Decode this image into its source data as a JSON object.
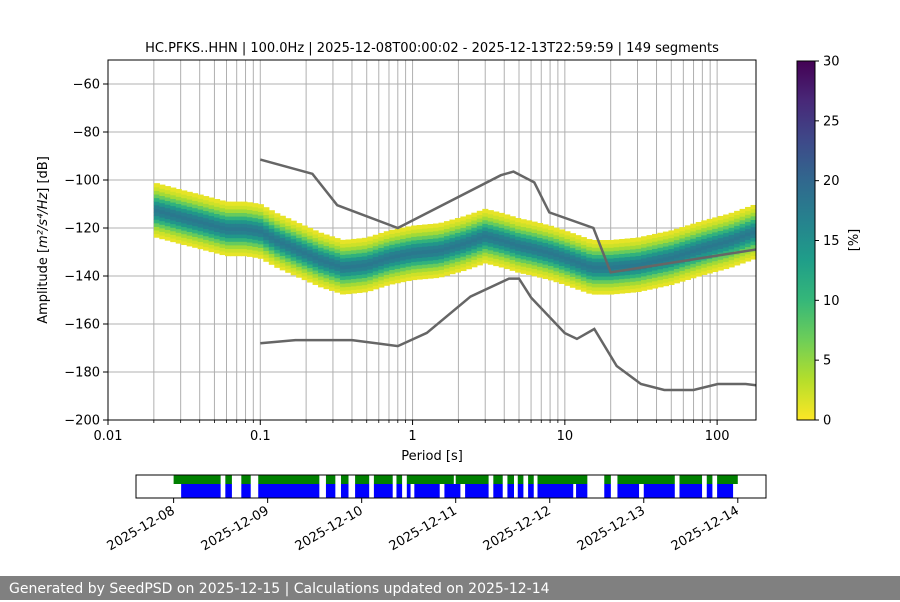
{
  "chart_data": [
    {
      "type": "heatmap",
      "title": "HC.PFKS..HHN | 100.0Hz | 2025-12-08T00:00:02 - 2025-12-13T22:59:59 | 149 segments",
      "xlabel": "Period [s]",
      "ylabel_prefix": "Amplitude [",
      "ylabel_math": "m²/s⁴/Hz",
      "ylabel_suffix": "] [dB]",
      "xscale": "log",
      "xlim": [
        0.01,
        180
      ],
      "ylim": [
        -200,
        -50
      ],
      "xticks": [
        {
          "value": 0.01,
          "label": "0.01"
        },
        {
          "value": 0.1,
          "label": "0.1"
        },
        {
          "value": 1,
          "label": "1"
        },
        {
          "value": 10,
          "label": "10"
        },
        {
          "value": 100,
          "label": "100"
        }
      ],
      "yticks": [
        -60,
        -80,
        -100,
        -120,
        -140,
        -160,
        -180,
        -200
      ],
      "grid": true,
      "colorbar": {
        "label": "[%]",
        "range": [
          0,
          30
        ],
        "ticks": [
          0,
          5,
          10,
          15,
          20,
          25,
          30
        ],
        "colormap": "viridis-reversed",
        "colors": [
          "#fde725",
          "#b5de2b",
          "#6ece58",
          "#35b779",
          "#1f9e89",
          "#26828e",
          "#31688e",
          "#3e4989",
          "#482878",
          "#440154"
        ]
      },
      "psd_mode": [
        {
          "period": 0.02,
          "db": -113
        },
        {
          "period": 0.03,
          "db": -116
        },
        {
          "period": 0.04,
          "db": -118
        },
        {
          "period": 0.06,
          "db": -121
        },
        {
          "period": 0.08,
          "db": -121
        },
        {
          "period": 0.1,
          "db": -122
        },
        {
          "period": 0.13,
          "db": -126
        },
        {
          "period": 0.18,
          "db": -130
        },
        {
          "period": 0.25,
          "db": -134
        },
        {
          "period": 0.35,
          "db": -137
        },
        {
          "period": 0.5,
          "db": -136
        },
        {
          "period": 0.7,
          "db": -133
        },
        {
          "period": 1.0,
          "db": -131
        },
        {
          "period": 1.5,
          "db": -130
        },
        {
          "period": 2.2,
          "db": -127
        },
        {
          "period": 3.0,
          "db": -124
        },
        {
          "period": 4.0,
          "db": -126
        },
        {
          "period": 5.0,
          "db": -128
        },
        {
          "period": 6.0,
          "db": -129
        },
        {
          "period": 8.0,
          "db": -131
        },
        {
          "period": 10,
          "db": -133
        },
        {
          "period": 15,
          "db": -137
        },
        {
          "period": 20,
          "db": -137
        },
        {
          "period": 30,
          "db": -136
        },
        {
          "period": 50,
          "db": -133
        },
        {
          "period": 80,
          "db": -129
        },
        {
          "period": 120,
          "db": -126
        },
        {
          "period": 180,
          "db": -122
        }
      ],
      "spread_db": 8,
      "high_noise_model": [
        {
          "period": 0.1,
          "db": -91.5
        },
        {
          "period": 0.22,
          "db": -97.4
        },
        {
          "period": 0.32,
          "db": -110.5
        },
        {
          "period": 0.8,
          "db": -120
        },
        {
          "period": 3.8,
          "db": -98
        },
        {
          "period": 4.6,
          "db": -96.5
        },
        {
          "period": 6.3,
          "db": -101
        },
        {
          "period": 7.9,
          "db": -113.5
        },
        {
          "period": 15.4,
          "db": -120
        },
        {
          "period": 20,
          "db": -138.5
        },
        {
          "period": 354.8,
          "db": -126
        }
      ],
      "low_noise_model": [
        {
          "period": 0.1,
          "db": -168
        },
        {
          "period": 0.17,
          "db": -166.7
        },
        {
          "period": 0.4,
          "db": -166.7
        },
        {
          "period": 0.8,
          "db": -169.2
        },
        {
          "period": 1.24,
          "db": -163.7
        },
        {
          "period": 2.4,
          "db": -148.6
        },
        {
          "period": 4.3,
          "db": -141.1
        },
        {
          "period": 5.0,
          "db": -141.1
        },
        {
          "period": 6.0,
          "db": -149
        },
        {
          "period": 10,
          "db": -163.8
        },
        {
          "period": 12,
          "db": -166.2
        },
        {
          "period": 15.6,
          "db": -162.1
        },
        {
          "period": 21.9,
          "db": -177.5
        },
        {
          "period": 31.6,
          "db": -185
        },
        {
          "period": 45,
          "db": -187.5
        },
        {
          "period": 70,
          "db": -187.5
        },
        {
          "period": 101,
          "db": -185
        },
        {
          "period": 154,
          "db": -185
        },
        {
          "period": 180,
          "db": -185.5
        }
      ]
    },
    {
      "type": "timeline",
      "xticks": [
        "2025-12-08",
        "2025-12-09",
        "2025-12-10",
        "2025-12-11",
        "2025-12-12",
        "2025-12-13",
        "2025-12-14"
      ],
      "xlim_days": [
        -0.4,
        6.3
      ],
      "colors": {
        "data": "#008000",
        "psd": "#0000ff"
      },
      "green_segments": [
        [
          0.0,
          0.5
        ],
        [
          0.55,
          0.62
        ],
        [
          0.72,
          0.82
        ],
        [
          0.9,
          1.55
        ],
        [
          1.62,
          1.72
        ],
        [
          1.78,
          1.86
        ],
        [
          1.93,
          2.08
        ],
        [
          2.13,
          2.33
        ],
        [
          2.37,
          2.43
        ],
        [
          2.48,
          2.98
        ],
        [
          3.0,
          3.35
        ],
        [
          3.4,
          3.5
        ],
        [
          3.55,
          3.62
        ],
        [
          3.66,
          3.72
        ],
        [
          3.77,
          3.83
        ],
        [
          3.87,
          4.4
        ],
        [
          4.58,
          4.65
        ],
        [
          4.72,
          5.33
        ],
        [
          5.38,
          5.62
        ],
        [
          5.67,
          5.73
        ],
        [
          5.78,
          6.0
        ]
      ],
      "blue_segments": [
        [
          0.08,
          0.5
        ],
        [
          0.55,
          0.62
        ],
        [
          0.72,
          0.82
        ],
        [
          0.9,
          1.55
        ],
        [
          1.62,
          1.72
        ],
        [
          1.78,
          1.86
        ],
        [
          1.93,
          2.08
        ],
        [
          2.13,
          2.33
        ],
        [
          2.37,
          2.43
        ],
        [
          2.48,
          2.52
        ],
        [
          2.56,
          2.83
        ],
        [
          2.88,
          3.05
        ],
        [
          3.1,
          3.35
        ],
        [
          3.4,
          3.5
        ],
        [
          3.55,
          3.62
        ],
        [
          3.66,
          3.72
        ],
        [
          3.77,
          3.83
        ],
        [
          3.87,
          4.25
        ],
        [
          4.28,
          4.4
        ],
        [
          4.58,
          4.65
        ],
        [
          4.72,
          4.95
        ],
        [
          5.0,
          5.33
        ],
        [
          5.38,
          5.62
        ],
        [
          5.67,
          5.73
        ],
        [
          5.78,
          5.95
        ]
      ]
    }
  ],
  "footer": {
    "text": "Generated by SeedPSD on 2025-12-15 | Calculations updated on 2025-12-14"
  }
}
